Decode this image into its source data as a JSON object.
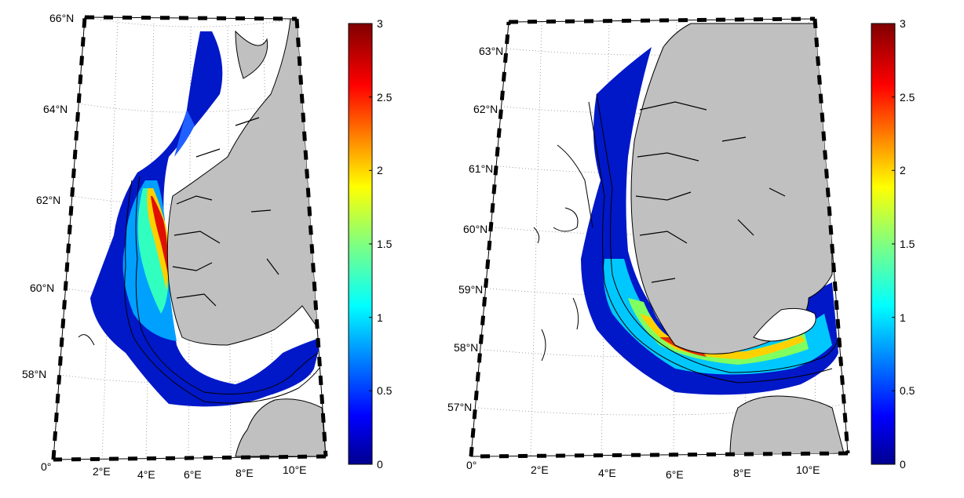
{
  "maps": [
    {
      "lat_labels": [
        "66°N",
        "64°N",
        "62°N",
        "60°N",
        "58°N"
      ],
      "lon_labels": [
        "0°",
        "2°E",
        "4°E",
        "6°E",
        "8°E",
        "10°E"
      ],
      "colorbar": {
        "ticks": [
          "3",
          "2.5",
          "2",
          "1.5",
          "1",
          "0.5",
          "0"
        ]
      }
    },
    {
      "lat_labels": [
        "63°N",
        "62°N",
        "61°N",
        "60°N",
        "59°N",
        "58°N",
        "57°N"
      ],
      "lon_labels": [
        "0°",
        "2°E",
        "4°E",
        "6°E",
        "8°E",
        "10°E"
      ],
      "colorbar": {
        "ticks": [
          "3",
          "2.5",
          "2",
          "1.5",
          "1",
          "0.5",
          "0"
        ]
      }
    }
  ],
  "colors": {
    "land": "#c0c0c0",
    "colormap": [
      "#00008f",
      "#0000ff",
      "#0080ff",
      "#00ffff",
      "#80ff80",
      "#ffff00",
      "#ff8000",
      "#ff0000",
      "#800000"
    ]
  }
}
